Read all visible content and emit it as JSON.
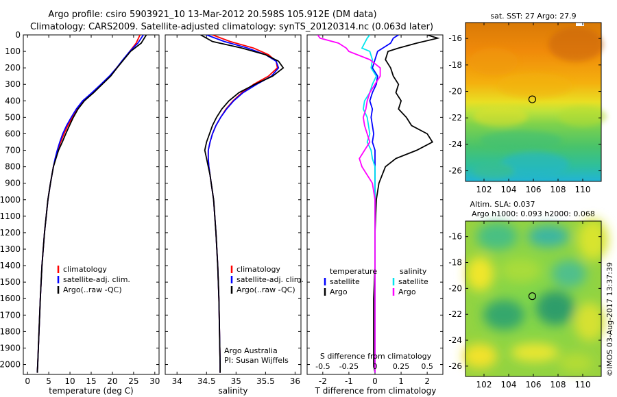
{
  "header": {
    "line1": "Argo profile: csiro 5903921_10 13-Mar-2012 20.598S 105.912E (DM data)",
    "line2": "Climatology: CARS2009. Satellite-adjusted climatology: synTS_20120314.nc (0.063d later)"
  },
  "watermark": "©IMOS 03-Aug-2017 13:37:39",
  "colors": {
    "climatology": "#ff0000",
    "satellite": "#0000ff",
    "argo": "#000000",
    "sal_satellite": "#00e5ee",
    "sal_argo": "#ff00ff"
  },
  "chart_data": [
    {
      "id": "temperature",
      "type": "line",
      "xlabel": "temperature (deg C)",
      "xlim": [
        -1,
        31
      ],
      "xticks": [
        0,
        5,
        10,
        15,
        20,
        25,
        30
      ],
      "ylim": [
        2060,
        0
      ],
      "yticks": [
        0,
        100,
        200,
        300,
        400,
        500,
        600,
        700,
        800,
        900,
        1000,
        1100,
        1200,
        1300,
        1400,
        1500,
        1600,
        1700,
        1800,
        1900,
        2000
      ],
      "depth": [
        0,
        50,
        100,
        150,
        200,
        250,
        300,
        350,
        400,
        450,
        500,
        550,
        600,
        650,
        700,
        750,
        800,
        900,
        1000,
        1200,
        1400,
        1600,
        1800,
        2000,
        2050
      ],
      "legend": [
        "climatology",
        "satellite-adj. clim.",
        "Argo(..raw -QC)"
      ],
      "series": [
        {
          "name": "climatology",
          "color_key": "climatology",
          "values": [
            26.5,
            25.6,
            24.1,
            22.6,
            21.0,
            19.4,
            17.4,
            15.5,
            13.3,
            11.8,
            10.6,
            9.5,
            8.6,
            7.8,
            7.1,
            6.6,
            6.1,
            5.4,
            4.8,
            4.0,
            3.4,
            3.0,
            2.7,
            2.4,
            2.3
          ]
        },
        {
          "name": "satellite-adj. clim.",
          "color_key": "satellite",
          "values": [
            27.3,
            26.0,
            24.1,
            22.5,
            21.0,
            19.3,
            17.3,
            15.2,
            13.0,
            11.5,
            10.3,
            9.2,
            8.3,
            7.6,
            7.0,
            6.5,
            6.1,
            5.4,
            4.8,
            4.0,
            3.4,
            3.0,
            2.7,
            2.4,
            2.3
          ]
        },
        {
          "name": "Argo(..raw -QC)",
          "color_key": "argo",
          "values": [
            28.0,
            26.8,
            24.3,
            22.7,
            21.1,
            19.6,
            17.6,
            15.6,
            13.4,
            11.9,
            10.8,
            9.9,
            9.0,
            8.2,
            7.3,
            6.7,
            6.1,
            5.4,
            4.8,
            4.0,
            3.4,
            3.0,
            2.7,
            2.4,
            2.3
          ]
        }
      ]
    },
    {
      "id": "salinity",
      "type": "line",
      "xlabel": "salinity",
      "xlim": [
        33.8,
        36.1
      ],
      "xticks": [
        34,
        34.5,
        35,
        35.5,
        36
      ],
      "ylim": [
        2060,
        0
      ],
      "depth": [
        0,
        40,
        80,
        120,
        160,
        200,
        250,
        300,
        350,
        400,
        450,
        500,
        550,
        600,
        650,
        700,
        750,
        800,
        850,
        900,
        1000,
        1200,
        1400,
        1600,
        1800,
        2000,
        2050
      ],
      "legend": [
        "climatology",
        "satellite-adj. clim.",
        "Argo(..raw -QC)"
      ],
      "annotation": [
        "Argo Australia",
        "PI: Susan Wijffels"
      ],
      "series": [
        {
          "name": "climatology",
          "color_key": "climatology",
          "values": [
            34.6,
            34.9,
            35.3,
            35.55,
            35.68,
            35.7,
            35.55,
            35.3,
            35.1,
            34.95,
            34.83,
            34.74,
            34.66,
            34.6,
            34.56,
            34.53,
            34.53,
            34.54,
            34.56,
            34.58,
            34.62,
            34.66,
            34.69,
            34.71,
            34.72,
            34.73,
            34.73
          ]
        },
        {
          "name": "satellite-adj. clim.",
          "color_key": "satellite",
          "values": [
            34.5,
            34.8,
            35.2,
            35.5,
            35.68,
            35.72,
            35.6,
            35.35,
            35.12,
            34.96,
            34.84,
            34.74,
            34.66,
            34.6,
            34.56,
            34.53,
            34.53,
            34.54,
            34.56,
            34.58,
            34.62,
            34.66,
            34.69,
            34.71,
            34.72,
            34.73,
            34.73
          ]
        },
        {
          "name": "Argo(..raw -QC)",
          "color_key": "argo",
          "values": [
            34.4,
            34.6,
            35.1,
            35.5,
            35.72,
            35.8,
            35.62,
            35.32,
            35.05,
            34.88,
            34.76,
            34.67,
            34.6,
            34.55,
            34.5,
            34.47,
            34.5,
            34.53,
            34.56,
            34.58,
            34.62,
            34.66,
            34.69,
            34.71,
            34.72,
            34.73,
            34.73
          ]
        }
      ]
    },
    {
      "id": "difference",
      "type": "line",
      "xlabel_top": "S difference from climatology",
      "xlabel_bottom": "T difference from climatology",
      "xlim": [
        -2.6,
        2.6
      ],
      "xticks_bottom": [
        -2,
        -1,
        0,
        1,
        2
      ],
      "xticks_top": [
        "-0.5",
        "-0.25",
        "0",
        "0.25",
        "0.5"
      ],
      "ylim": [
        2060,
        0
      ],
      "depth": [
        0,
        20,
        50,
        80,
        100,
        150,
        200,
        250,
        300,
        350,
        400,
        450,
        500,
        550,
        600,
        650,
        700,
        750,
        800,
        900,
        1000,
        1200,
        1400,
        1600,
        1800,
        2000,
        2050
      ],
      "legend_groups": [
        {
          "title": "temperature",
          "items": [
            "satellite",
            "Argo"
          ]
        },
        {
          "title": "salinity",
          "items": [
            "satellite",
            "Argo"
          ]
        }
      ],
      "series": [
        {
          "name": "temperature satellite",
          "color_key": "satellite",
          "values": [
            0.9,
            0.7,
            0.6,
            0.3,
            0.1,
            0.0,
            -0.1,
            0.1,
            0.05,
            -0.1,
            -0.2,
            -0.1,
            -0.15,
            -0.1,
            -0.05,
            -0.1,
            0.0,
            0.0,
            0.0,
            0.0,
            0.0,
            0.0,
            0.0,
            0.0,
            0.0,
            0.0,
            0.0
          ]
        },
        {
          "name": "temperature Argo",
          "color_key": "argo",
          "values": [
            2.0,
            2.4,
            1.6,
            0.9,
            0.5,
            0.4,
            0.6,
            0.7,
            0.9,
            0.8,
            1.0,
            0.9,
            1.2,
            1.4,
            2.0,
            2.2,
            1.6,
            0.8,
            0.4,
            0.15,
            0.05,
            0.0,
            0.0,
            -0.05,
            -0.05,
            -0.05,
            0.0
          ]
        },
        {
          "name": "salinity satellite",
          "color_key": "sal_satellite",
          "values": [
            -0.2,
            -0.3,
            -0.4,
            -0.5,
            -0.2,
            -0.1,
            -0.15,
            0.05,
            -0.1,
            -0.2,
            -0.4,
            -0.45,
            -0.3,
            -0.25,
            -0.2,
            -0.3,
            -0.15,
            -0.1,
            0.0,
            0.0,
            0.0,
            0.0,
            0.0,
            0.0,
            0.0,
            0.0,
            0.0
          ]
        },
        {
          "name": "salinity Argo",
          "color_key": "sal_argo",
          "values": [
            -2.2,
            -2.1,
            -1.4,
            -1.1,
            -1.0,
            -0.2,
            0.2,
            0.2,
            0.0,
            -0.2,
            -0.3,
            -0.35,
            -0.45,
            -0.4,
            -0.3,
            -0.2,
            -0.4,
            -0.6,
            -0.5,
            -0.1,
            0.0,
            0.0,
            0.0,
            0.0,
            0.0,
            0.0,
            0.0
          ]
        }
      ]
    },
    {
      "id": "sst-map",
      "type": "heatmap",
      "title": "sat. SST: 27 Argo: 27.9",
      "xticks": [
        102,
        104,
        106,
        108,
        110
      ],
      "yticks": [
        -16,
        -18,
        -20,
        -22,
        -24,
        -26
      ],
      "xlim": [
        100.5,
        111.5
      ],
      "ylim": [
        -26.8,
        -14.8
      ],
      "marker": {
        "lon": 105.912,
        "lat": -20.598
      }
    },
    {
      "id": "sla-map",
      "type": "heatmap",
      "title_lines": [
        "Altim. SLA: 0.037",
        "Argo h1000: 0.093 h2000: 0.068"
      ],
      "xticks": [
        102,
        104,
        106,
        108,
        110
      ],
      "yticks": [
        -16,
        -18,
        -20,
        -22,
        -24,
        -26
      ],
      "xlim": [
        100.5,
        111.5
      ],
      "ylim": [
        -26.8,
        -14.8
      ],
      "marker": {
        "lon": 105.912,
        "lat": -20.598
      }
    }
  ]
}
